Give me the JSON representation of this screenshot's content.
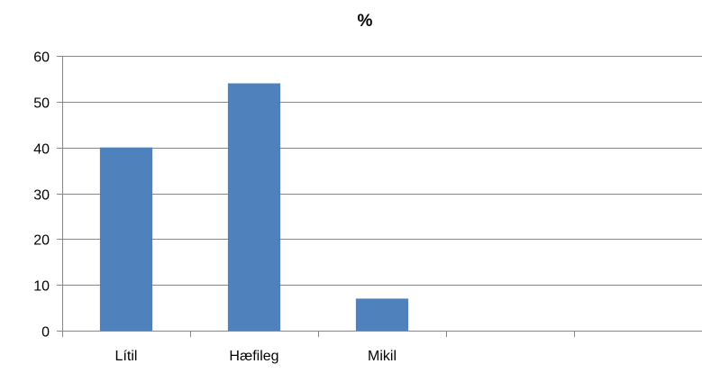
{
  "chart_data": {
    "type": "bar",
    "title": "%",
    "xlabel": "",
    "ylabel": "",
    "categories": [
      "Lítil",
      "Hæfileg",
      "Mikil",
      "",
      ""
    ],
    "values": [
      40,
      54,
      7,
      null,
      null
    ],
    "ylim": [
      0,
      60
    ],
    "yticks": [
      0,
      10,
      20,
      30,
      40,
      50,
      60
    ],
    "ytick_labels": [
      "0",
      "10",
      "20",
      "30",
      "40",
      "50",
      "60"
    ],
    "grid": true,
    "legend": "none",
    "colors": {
      "bar": "#4F81BD",
      "grid": "#868686",
      "axis": "#868686"
    }
  }
}
